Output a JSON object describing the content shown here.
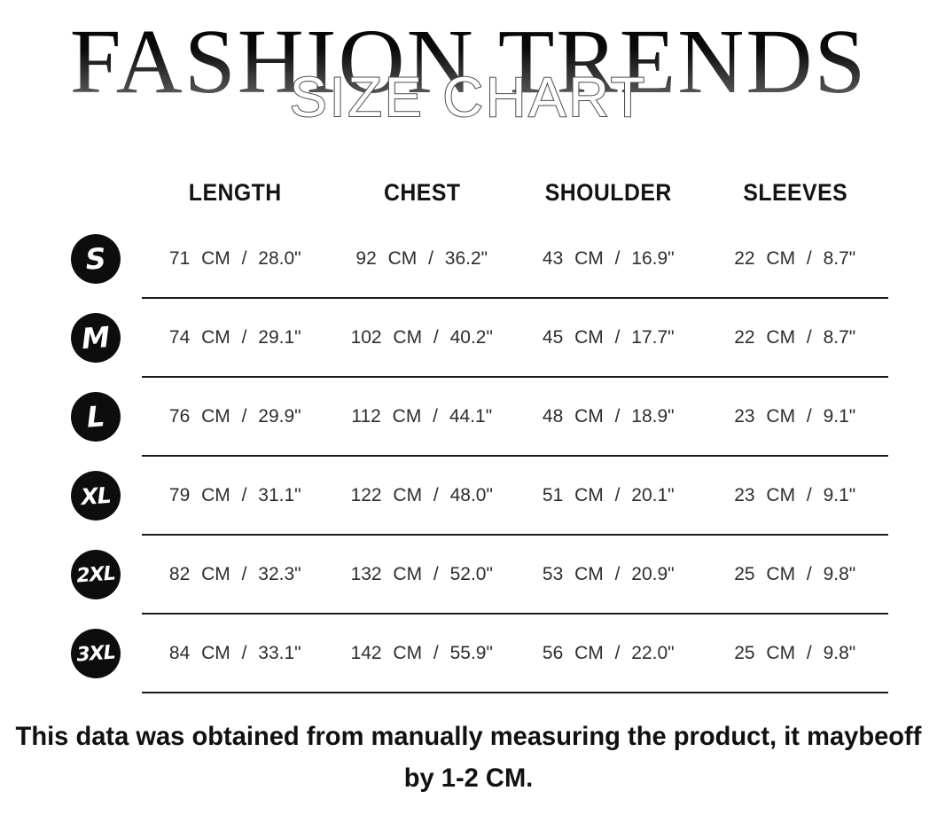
{
  "header": {
    "brand_title": "FASHION TRENDS",
    "subtitle": "SIZE CHART"
  },
  "table": {
    "columns": [
      "LENGTH",
      "CHEST",
      "SHOULDER",
      "SLEEVES"
    ],
    "rows": [
      {
        "size": "S",
        "length": "71 CM / 28.0\"",
        "chest": "92 CM / 36.2\"",
        "shoulder": "43 CM / 16.9\"",
        "sleeves": "22 CM / 8.7\""
      },
      {
        "size": "M",
        "length": "74 CM / 29.1\"",
        "chest": "102 CM / 40.2\"",
        "shoulder": "45 CM / 17.7\"",
        "sleeves": "22 CM / 8.7\""
      },
      {
        "size": "L",
        "length": "76 CM / 29.9\"",
        "chest": "112 CM / 44.1\"",
        "shoulder": "48 CM / 18.9\"",
        "sleeves": "23 CM / 9.1\""
      },
      {
        "size": "XL",
        "length": "79 CM / 31.1\"",
        "chest": "122 CM / 48.0\"",
        "shoulder": "51 CM / 20.1\"",
        "sleeves": "23 CM / 9.1\""
      },
      {
        "size": "2XL",
        "length": "82 CM / 32.3\"",
        "chest": "132 CM / 52.0\"",
        "shoulder": "53 CM / 20.9\"",
        "sleeves": "25 CM / 9.8\""
      },
      {
        "size": "3XL",
        "length": "84 CM / 33.1\"",
        "chest": "142 CM / 55.9\"",
        "shoulder": "56 CM / 22.0\"",
        "sleeves": "25 CM / 9.8\""
      }
    ]
  },
  "footer": {
    "lines": [
      "This data was obtained from manually measuring the product, it maybeoff",
      "by 1-2 CM."
    ]
  }
}
